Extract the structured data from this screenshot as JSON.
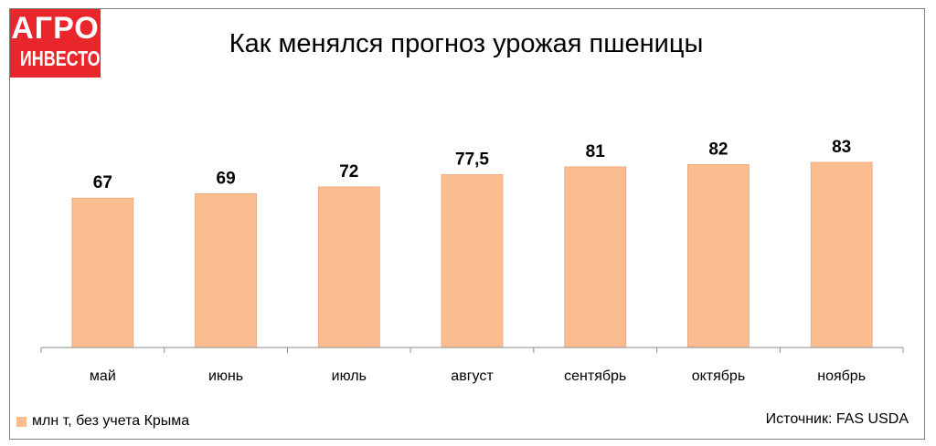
{
  "logo": {
    "line1": "АГРО",
    "line2": "ИНВЕСТОР"
  },
  "title": "Как менялся прогноз урожая пшеницы",
  "source": "Источник: FAS USDA",
  "colors": {
    "bar": "#f9bd90",
    "bar_border": "#e7a77c",
    "logo_bg": "#e8262b",
    "axis": "#8c8c8c"
  },
  "chart_data": {
    "type": "bar",
    "title": "Как менялся прогноз урожая пшеницы",
    "categories": [
      "май",
      "июнь",
      "июль",
      "август",
      "сентябрь",
      "октябрь",
      "ноябрь"
    ],
    "series": [
      {
        "name": "млн т, без учета Крыма",
        "values": [
          67,
          69,
          72,
          77.5,
          81,
          82,
          83
        ],
        "labels": [
          "67",
          "69",
          "72",
          "77,5",
          "81",
          "82",
          "83"
        ]
      }
    ],
    "xlabel": "",
    "ylabel": "",
    "ylim": [
      0,
      110
    ],
    "grid": false,
    "legend": "bottom-left"
  }
}
